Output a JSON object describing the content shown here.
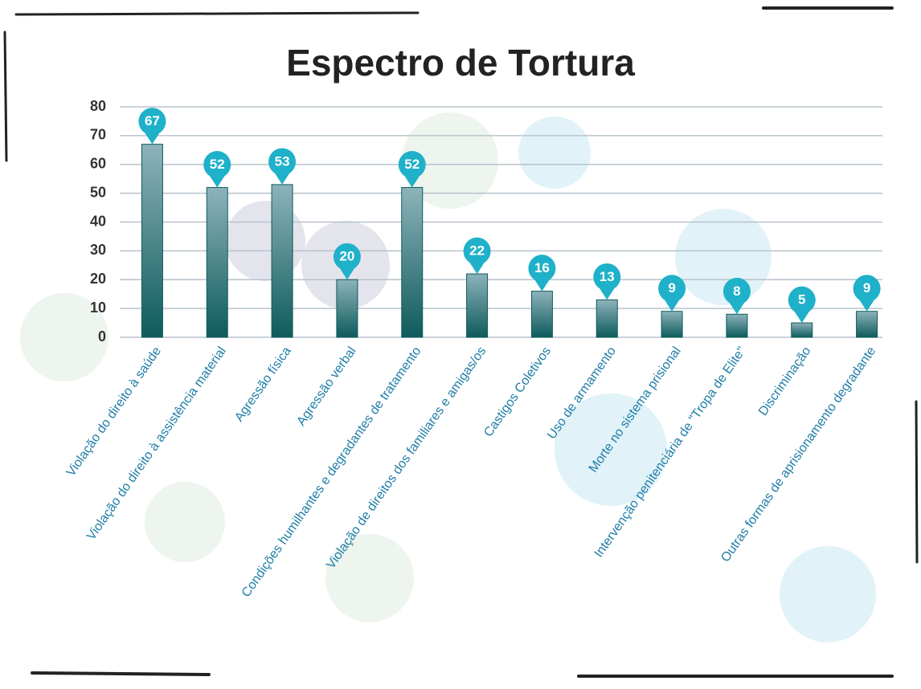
{
  "chart_data": {
    "type": "bar",
    "title": "Espectro de Tortura",
    "categories": [
      "Violação do direito à saúde",
      "Violação do direito à assistência material",
      "Agressão física",
      "Agressão verbal",
      "Condições humilhantes e degradantes de tratamento",
      "Violação de direitos dos familiares e amigas/os",
      "Castigos Coletivos",
      "Uso de armamento",
      "Morte no sistema prisional",
      "Intervenção penitenciária de \"Tropa de Elite\"",
      "Discriminação",
      "Outras formas de aprisionamento degradante"
    ],
    "values": [
      67,
      52,
      53,
      20,
      52,
      22,
      16,
      13,
      9,
      8,
      5,
      9
    ],
    "color": "#0e5b5c",
    "label_color": "#1fb1c9",
    "ylim": [
      0,
      80
    ],
    "yticks": [
      0,
      10,
      20,
      30,
      40,
      50,
      60,
      70,
      80
    ],
    "grid": true
  }
}
